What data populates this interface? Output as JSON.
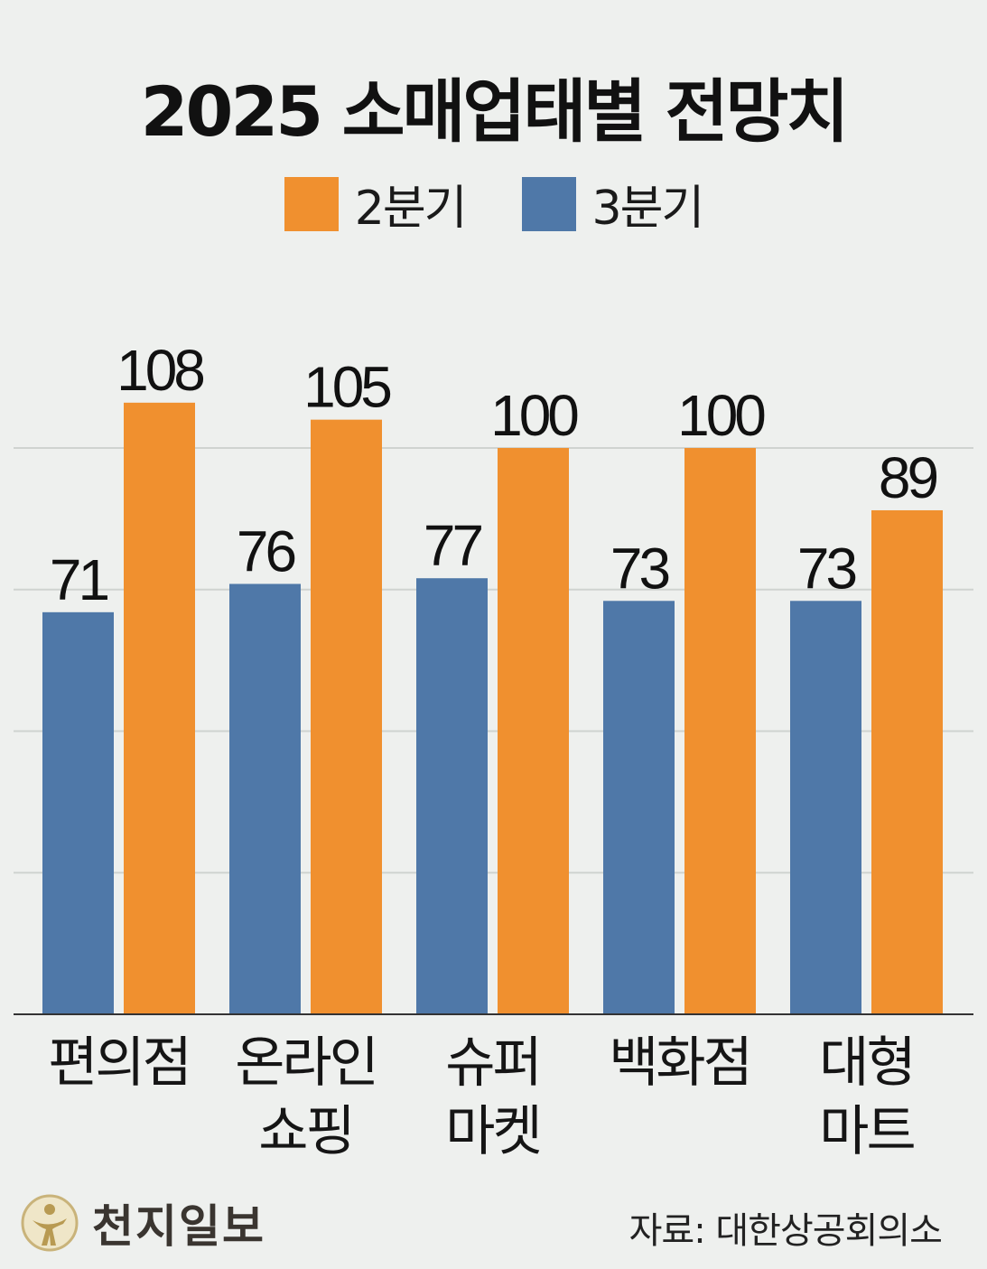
{
  "colors": {
    "q2": "#f0902f",
    "q3": "#4f78a8",
    "grid": "#cfd3d0",
    "axis": "#333333"
  },
  "footer": {
    "logo_text": "천지일보",
    "source": "자료: 대한상공회의소"
  },
  "chart_data": {
    "type": "bar",
    "title": "2025 소매업태별 전망치",
    "categories": [
      [
        "편의점"
      ],
      [
        "온라인",
        "쇼핑"
      ],
      [
        "슈퍼",
        "마켓"
      ],
      [
        "백화점"
      ],
      [
        "대형",
        "마트"
      ]
    ],
    "series": [
      {
        "name": "3분기",
        "values": [
          71,
          76,
          77,
          73,
          73
        ],
        "color_key": "q3"
      },
      {
        "name": "2분기",
        "values": [
          108,
          105,
          100,
          100,
          89
        ],
        "color_key": "q2"
      }
    ],
    "legend_order": [
      "2분기",
      "3분기"
    ],
    "ylim": [
      0,
      120
    ],
    "grid": true,
    "legend_position": "top"
  }
}
